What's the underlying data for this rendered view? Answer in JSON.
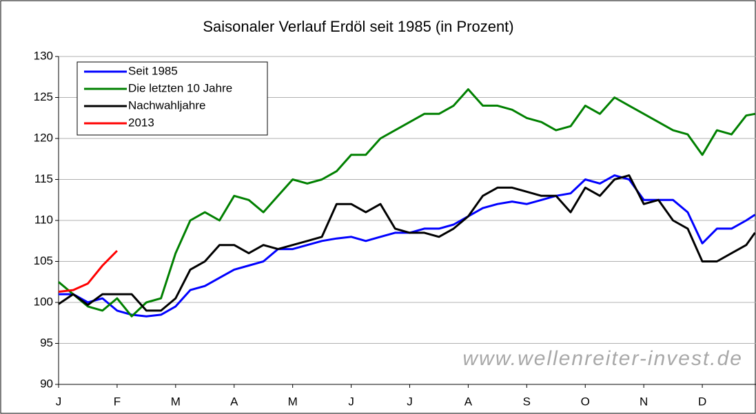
{
  "chart_data": {
    "type": "line",
    "title": "Saisonaler Verlauf Erdöl seit 1985 (in Prozent)",
    "watermark": "www.wellenreiter-invest.de",
    "x": [
      0,
      0.25,
      0.5,
      0.75,
      1,
      1.25,
      1.5,
      1.75,
      2,
      2.25,
      2.5,
      2.75,
      3,
      3.25,
      3.5,
      3.75,
      4,
      4.25,
      4.5,
      4.75,
      5,
      5.25,
      5.5,
      5.75,
      6,
      6.25,
      6.5,
      6.75,
      7,
      7.25,
      7.5,
      7.75,
      8,
      8.25,
      8.5,
      8.75,
      9,
      9.25,
      9.5,
      9.75,
      10,
      10.25,
      10.5,
      10.75,
      11,
      11.25,
      11.5,
      11.75,
      11.9
    ],
    "xlim": [
      0,
      12
    ],
    "xticks": [
      {
        "value": 0,
        "label": "J"
      },
      {
        "value": 1,
        "label": "F"
      },
      {
        "value": 2,
        "label": "M"
      },
      {
        "value": 3,
        "label": "A"
      },
      {
        "value": 4,
        "label": "M"
      },
      {
        "value": 5,
        "label": "J"
      },
      {
        "value": 6,
        "label": "J"
      },
      {
        "value": 7,
        "label": "A"
      },
      {
        "value": 8,
        "label": "S"
      },
      {
        "value": 9,
        "label": "O"
      },
      {
        "value": 10,
        "label": "N"
      },
      {
        "value": 11,
        "label": "D"
      }
    ],
    "ylim": [
      90,
      130
    ],
    "yticks": [
      90,
      95,
      100,
      105,
      110,
      115,
      120,
      125,
      130
    ],
    "grid": true,
    "legend": "upper left",
    "series": [
      {
        "name": "Seit 1985",
        "color": "#0000ff",
        "values": [
          101,
          101,
          100,
          100.5,
          99,
          98.5,
          98.3,
          98.5,
          99.5,
          101.5,
          102,
          103,
          104,
          104.5,
          105,
          106.5,
          106.5,
          107,
          107.5,
          107.8,
          108,
          107.5,
          108,
          108.5,
          108.5,
          109,
          109,
          109.5,
          110.5,
          111.5,
          112,
          112.3,
          112,
          112.5,
          113,
          113.3,
          115,
          114.5,
          115.5,
          115,
          112.5,
          112.5,
          112.5,
          111,
          107.2,
          109,
          109,
          110,
          110.7
        ]
      },
      {
        "name": "Die letzten 10 Jahre",
        "color": "#008000",
        "values": [
          102.5,
          101,
          99.5,
          99,
          100.5,
          98.3,
          100,
          100.5,
          106,
          110,
          111,
          110,
          113,
          112.5,
          111,
          113,
          115,
          114.5,
          115,
          116,
          118,
          118,
          120,
          121,
          122,
          123,
          123,
          124,
          126,
          124,
          124,
          123.5,
          122.5,
          122,
          121,
          121.5,
          124,
          123,
          125,
          124,
          123,
          122,
          121,
          120.5,
          118,
          121,
          120.5,
          122.8,
          123
        ]
      },
      {
        "name": "Nachwahljahre",
        "color": "#000000",
        "values": [
          99.8,
          101,
          99.7,
          101,
          101,
          101,
          99,
          99,
          100.5,
          104,
          105,
          107,
          107,
          106,
          107,
          106.5,
          107,
          107.5,
          108,
          112,
          112,
          111,
          112,
          109,
          108.5,
          108.5,
          108,
          109,
          110.5,
          113,
          114,
          114,
          113.5,
          113,
          113,
          111,
          114,
          113,
          115,
          115.5,
          112,
          112.5,
          110,
          109,
          105,
          105,
          106,
          107,
          108.5
        ]
      },
      {
        "name": "2013",
        "color": "#ff0000",
        "values": [
          101.3,
          101.5,
          102.3,
          104.5,
          106.3,
          null,
          null,
          null,
          null,
          null,
          null,
          null,
          null,
          null,
          null,
          null,
          null,
          null,
          null,
          null,
          null,
          null,
          null,
          null,
          null,
          null,
          null,
          null,
          null,
          null,
          null,
          null,
          null,
          null,
          null,
          null,
          null,
          null,
          null,
          null,
          null,
          null,
          null,
          null,
          null,
          null,
          null,
          null,
          null
        ]
      }
    ]
  }
}
